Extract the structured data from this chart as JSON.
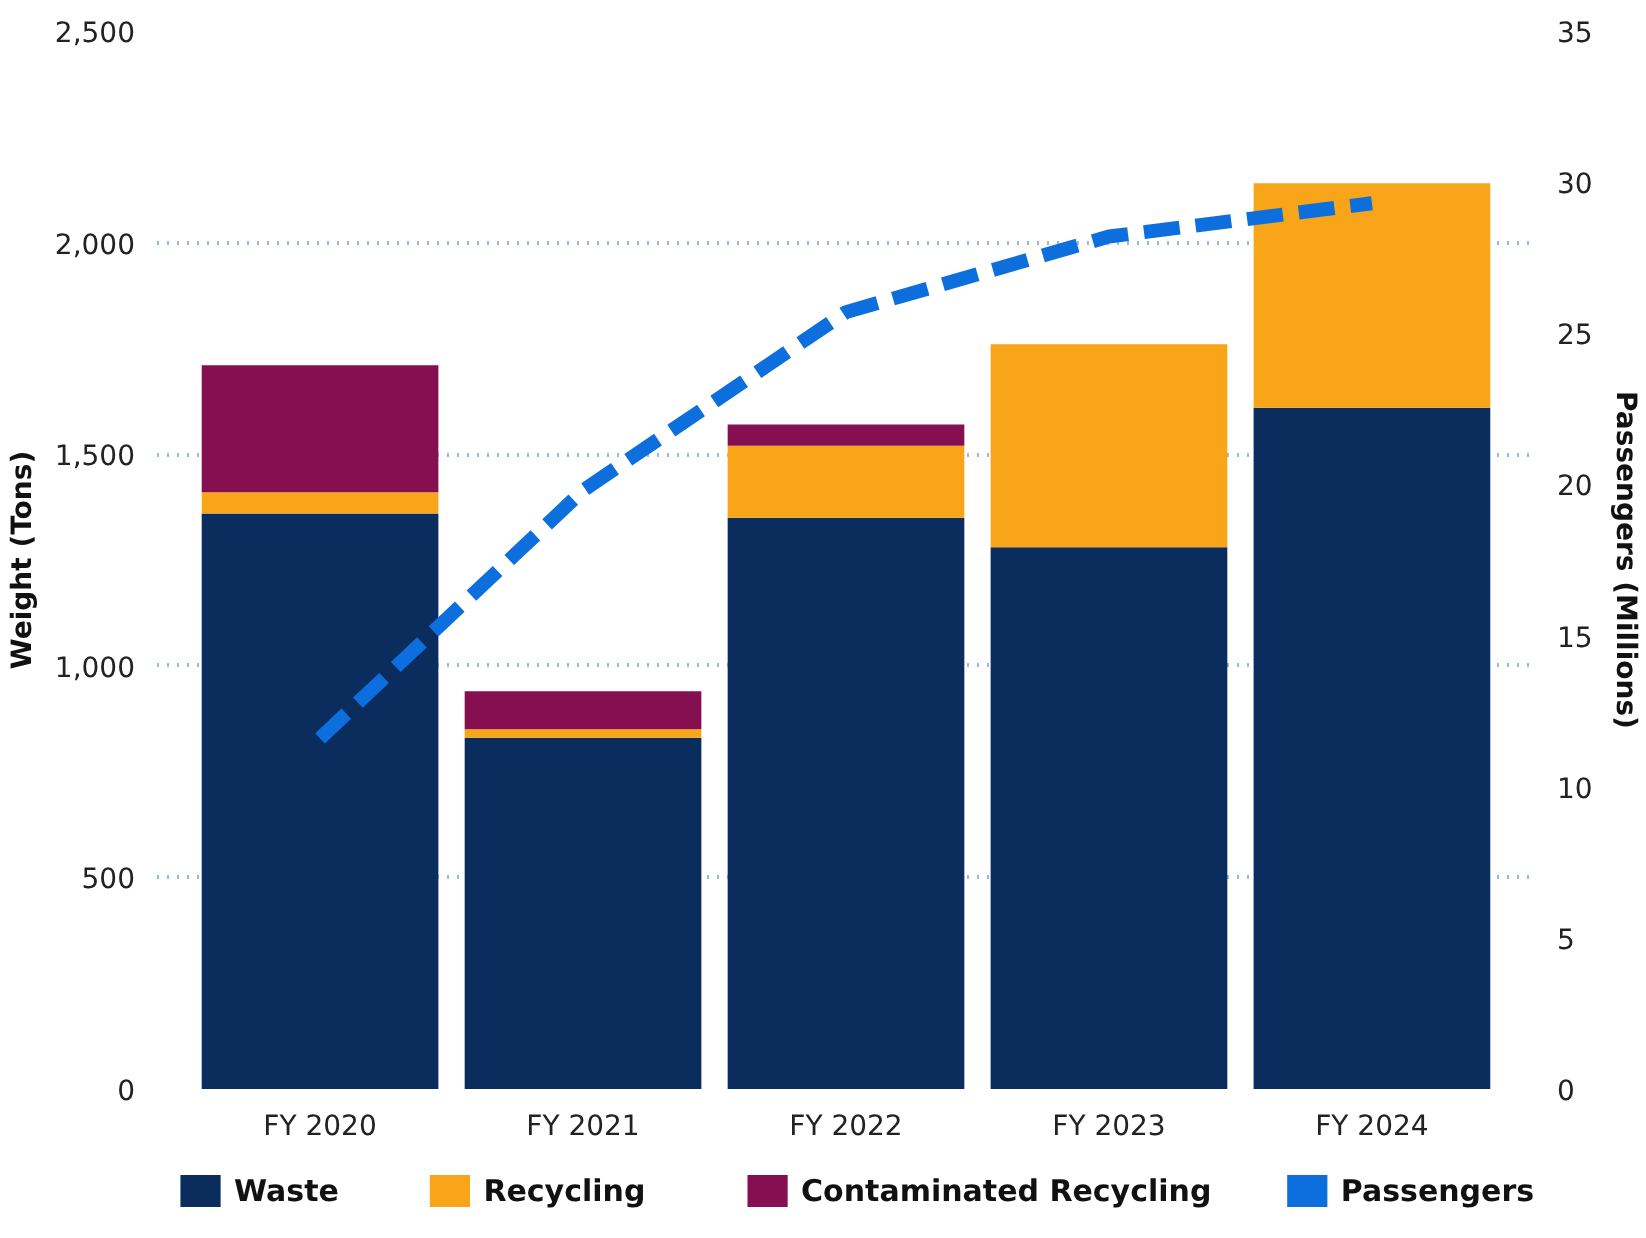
{
  "chart_data": {
    "type": "bar",
    "stacked": true,
    "ylabel": "Weight (Tons)",
    "y2label": "Passengers (Millions)",
    "categories": [
      "FY 2020",
      "FY 2021",
      "FY 2022",
      "FY 2023",
      "FY 2024"
    ],
    "series": [
      {
        "name": "Waste",
        "color": "#0a2d5e",
        "values": [
          1360,
          830,
          1350,
          1280,
          1610
        ]
      },
      {
        "name": "Recycling",
        "color": "#f9a51a",
        "values": [
          50,
          20,
          170,
          480,
          530
        ]
      },
      {
        "name": "Contaminated Recycling",
        "color": "#860f52",
        "values": [
          300,
          90,
          50,
          null,
          null
        ]
      },
      {
        "name": "Passengers",
        "type": "line",
        "axis": "y2",
        "color": "#0d6fde",
        "line_style": "dashed",
        "values": [
          11.6,
          19.8,
          25.7,
          28.2,
          29.3
        ]
      }
    ],
    "ylim": [
      0,
      2500
    ],
    "yticks": [
      0,
      500,
      {
        "value": 1000,
        "label": "1,000"
      },
      {
        "value": 1500,
        "label": "1,500"
      },
      {
        "value": 2000,
        "label": "2,000"
      },
      {
        "value": 2500,
        "label": "2,500"
      }
    ],
    "y2lim": [
      0,
      35
    ],
    "y2ticks": [
      0,
      5,
      10,
      15,
      20,
      25,
      30,
      35
    ],
    "grid": "y",
    "legend": "bottom"
  }
}
